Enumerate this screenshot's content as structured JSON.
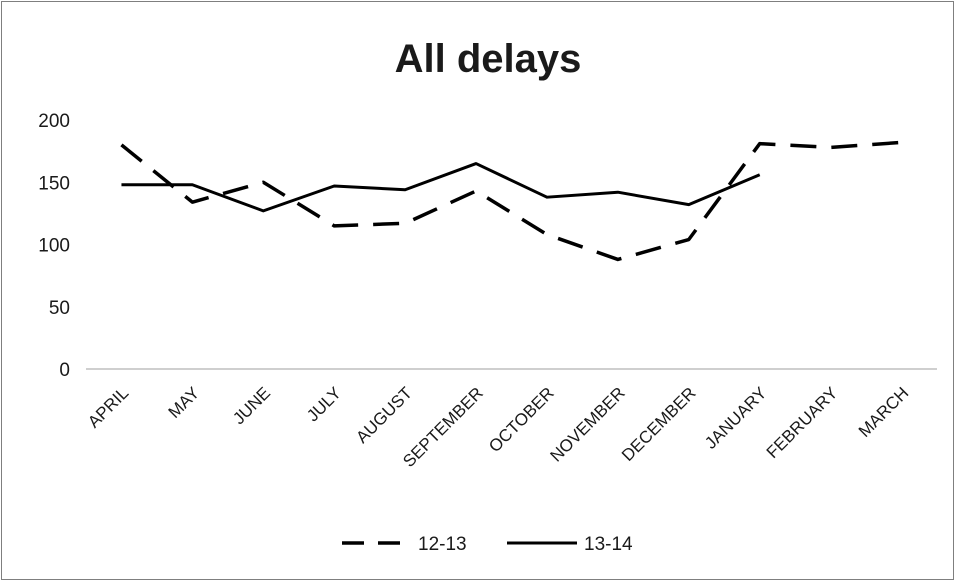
{
  "chart_data": {
    "type": "line",
    "title": "All delays",
    "xlabel": "",
    "ylabel": "",
    "categories": [
      "APRIL",
      "MAY",
      "JUNE",
      "JULY",
      "AUGUST",
      "SEPTEMBER",
      "OCTOBER",
      "NOVEMBER",
      "DECEMBER",
      "JANUARY",
      "FEBRUARY",
      "MARCH"
    ],
    "ylim": [
      0,
      200
    ],
    "yticks": [
      0,
      50,
      100,
      150,
      200
    ],
    "grid": false,
    "legend_position": "bottom",
    "series": [
      {
        "name": "12-13",
        "style": "dashed",
        "color": "#000000",
        "values": [
          180,
          134,
          150,
          115,
          117,
          143,
          108,
          88,
          104,
          181,
          178,
          182
        ]
      },
      {
        "name": "13-14",
        "style": "solid",
        "color": "#000000",
        "values": [
          148,
          148,
          127,
          147,
          144,
          165,
          138,
          142,
          132,
          156,
          null,
          null
        ]
      }
    ]
  }
}
